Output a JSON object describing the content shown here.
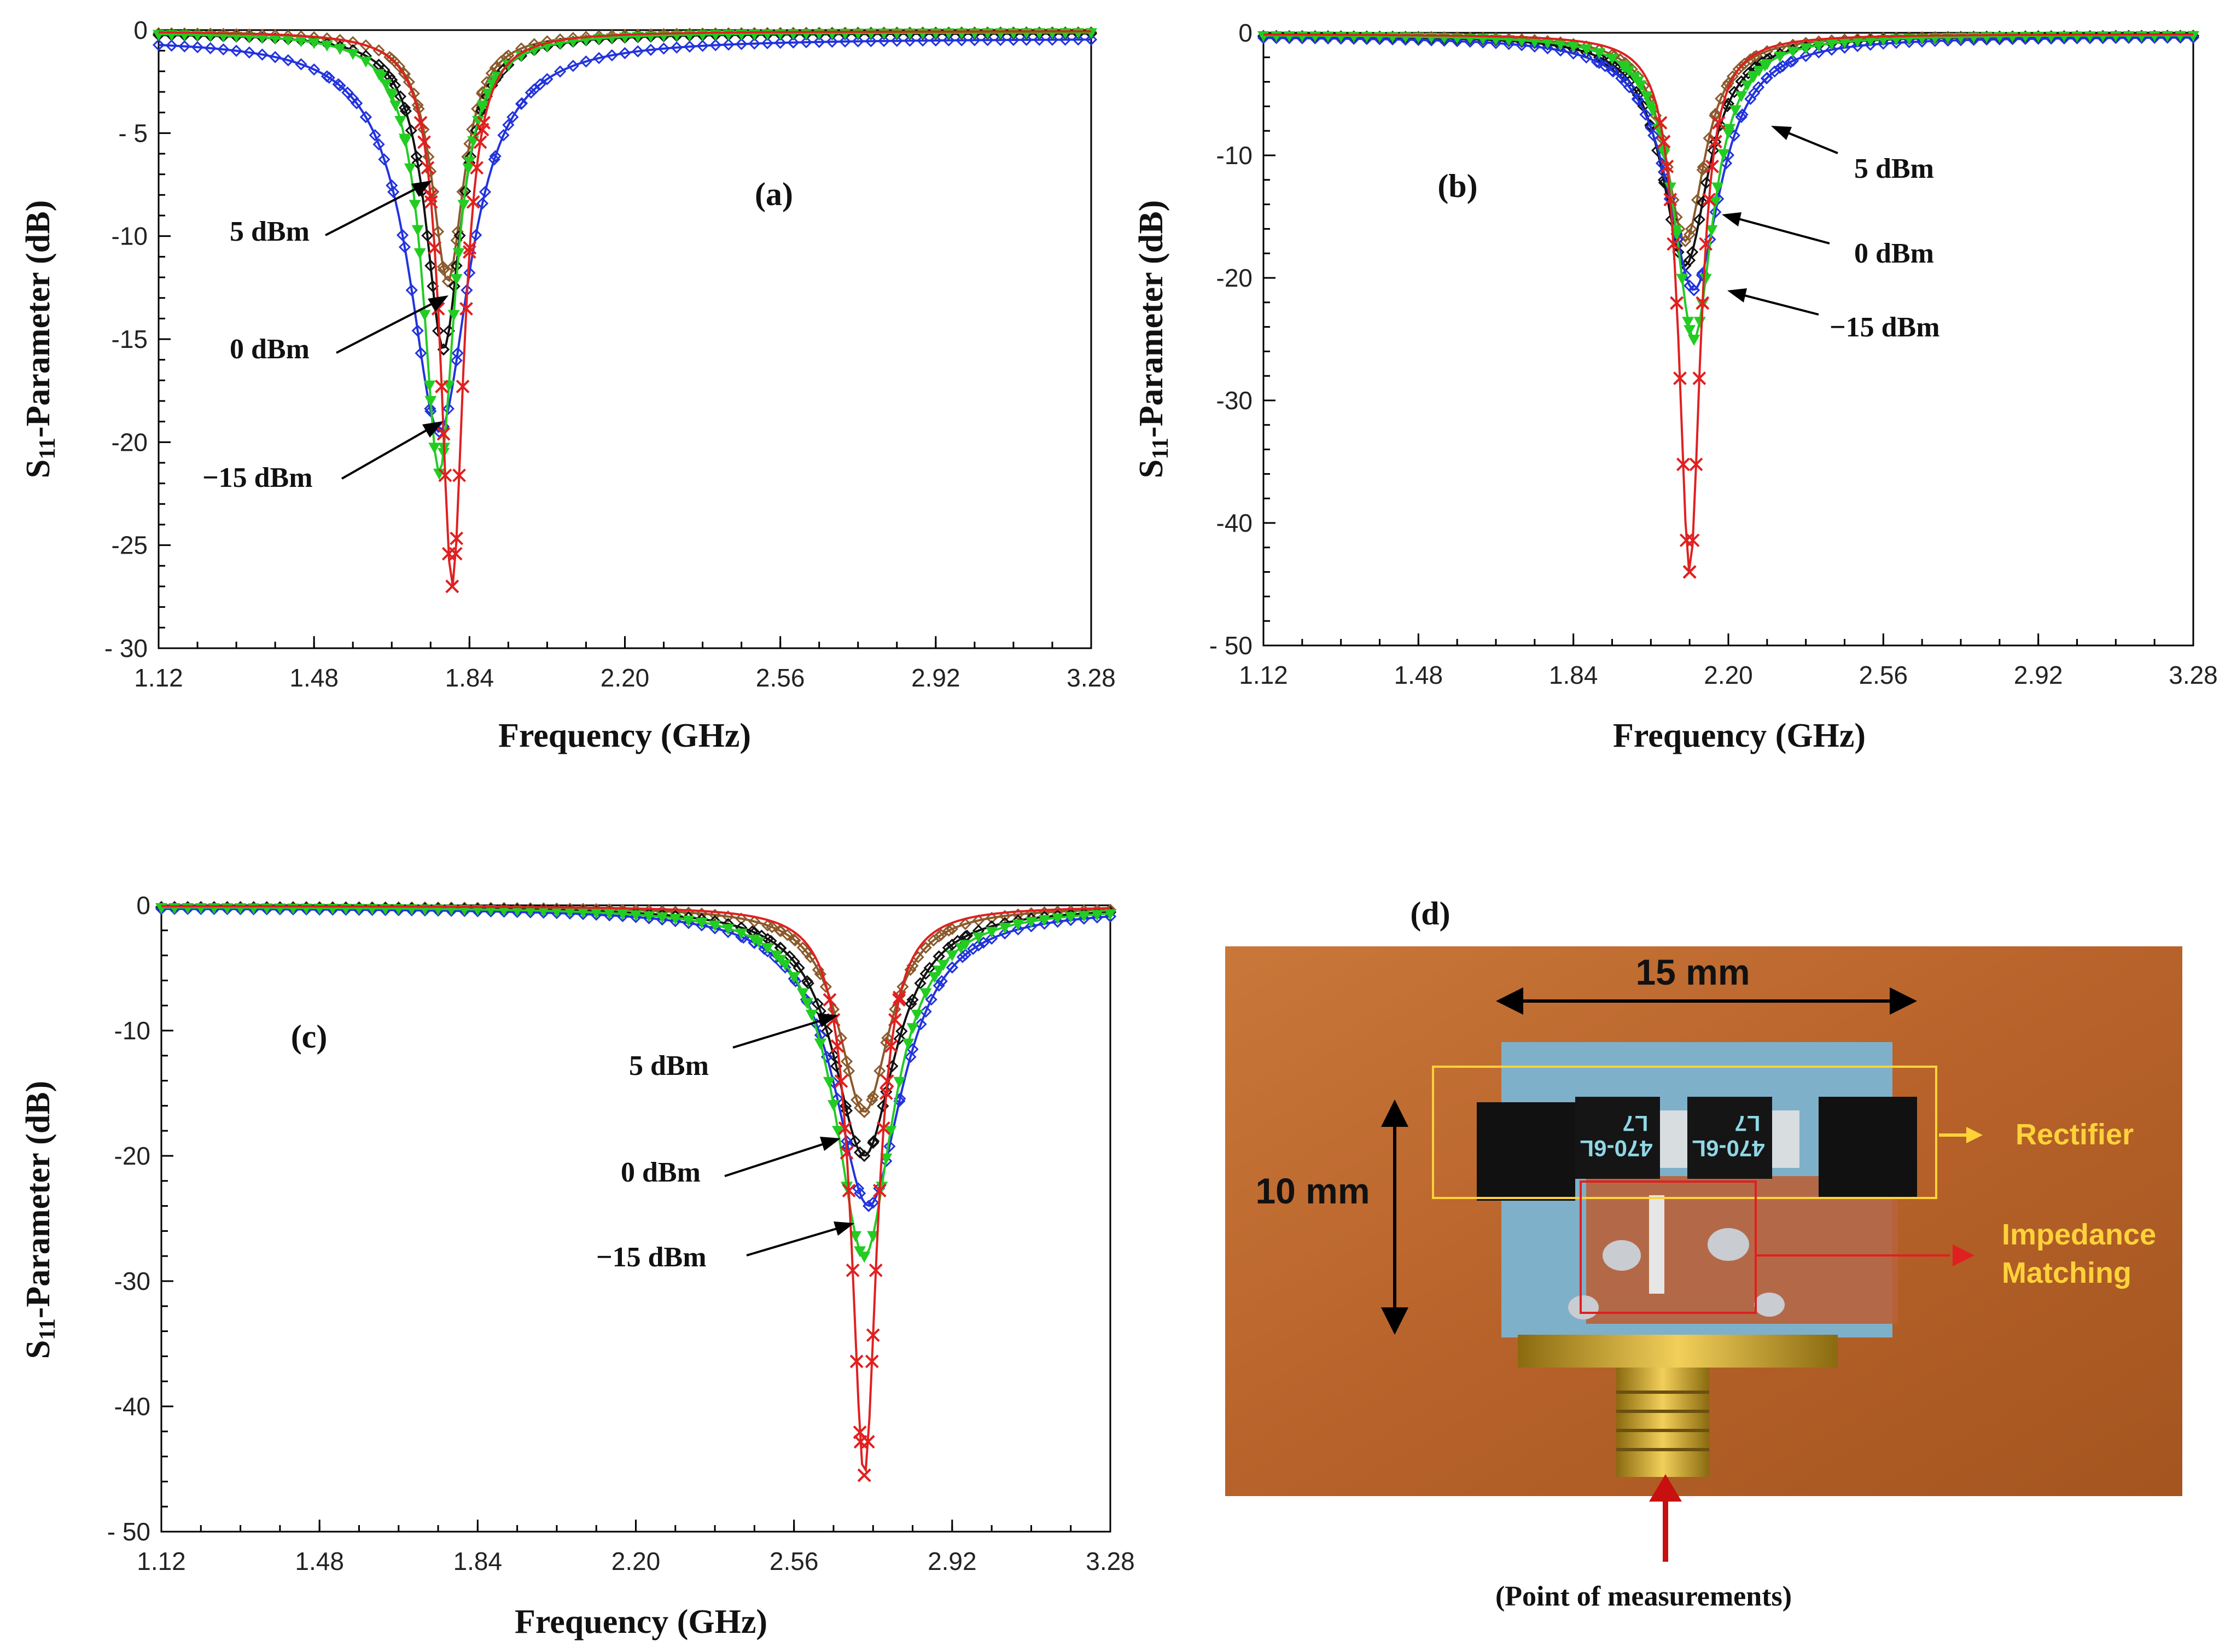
{
  "chart_data": [
    {
      "id": "a",
      "type": "line",
      "panel_label": "(a)",
      "xlabel": "Frequency (GHz)",
      "ylabel_prefix": "S",
      "ylabel_sub": "11",
      "ylabel_suffix": "-Parameter (dB)",
      "xlim": [
        1.12,
        3.28
      ],
      "ylim": [
        -30,
        0
      ],
      "xticks": [
        "1.12",
        "1.48",
        "1.84",
        "2.20",
        "2.56",
        "2.92",
        "3.28"
      ],
      "yticks": [
        "0",
        "- 5",
        "-10",
        "-15",
        "-20",
        "-25",
        "- 30"
      ],
      "series": [
        {
          "name": "5 dBm",
          "color": "#8b5a2b",
          "marker": "diamond",
          "f0": 1.79,
          "depth": -12.2,
          "width": 0.09,
          "baseline": -0.1
        },
        {
          "name": "0 dBm",
          "color": "#111111",
          "marker": "diamond",
          "f0": 1.78,
          "depth": -15.5,
          "width": 0.1,
          "baseline": -0.15
        },
        {
          "name": "-15 dBm",
          "color": "#2233dd",
          "marker": "diamond",
          "f0": 1.77,
          "depth": -19.5,
          "width": 0.17,
          "baseline": -0.4
        },
        {
          "name": "-15 dBm (green)",
          "color": "#22cc22",
          "marker": "triangle",
          "f0": 1.77,
          "depth": -21.5,
          "width": 0.09,
          "baseline": -0.1
        },
        {
          "name": "red",
          "color": "#e02020",
          "marker": "x",
          "f0": 1.8,
          "depth": -27.0,
          "width": 0.065,
          "baseline": -0.05
        }
      ],
      "annotations": [
        {
          "text": "5 dBm"
        },
        {
          "text": "0 dBm"
        },
        {
          "text": "−15 dBm"
        }
      ]
    },
    {
      "id": "b",
      "type": "line",
      "panel_label": "(b)",
      "xlabel": "Frequency (GHz)",
      "ylabel_prefix": "S",
      "ylabel_sub": "11",
      "ylabel_suffix": "-Parameter (dB)",
      "xlim": [
        1.12,
        3.28
      ],
      "ylim": [
        -50,
        0
      ],
      "xticks": [
        "1.12",
        "1.48",
        "1.84",
        "2.20",
        "2.56",
        "2.92",
        "3.28"
      ],
      "yticks": [
        "0",
        "-10",
        "-20",
        "-30",
        "-40",
        "- 50"
      ],
      "series": [
        {
          "name": "5 dBm",
          "color": "#8b5a2b",
          "marker": "diamond",
          "f0": 2.1,
          "depth": -17.0,
          "width": 0.11,
          "baseline": -0.2
        },
        {
          "name": "0 dBm",
          "color": "#111111",
          "marker": "diamond",
          "f0": 2.1,
          "depth": -19.0,
          "width": 0.13,
          "baseline": -0.2
        },
        {
          "name": "-15 dBm",
          "color": "#2233dd",
          "marker": "diamond",
          "f0": 2.12,
          "depth": -21.0,
          "width": 0.15,
          "baseline": -0.3
        },
        {
          "name": "-15 dBm (green)",
          "color": "#22cc22",
          "marker": "triangle",
          "f0": 2.12,
          "depth": -25.0,
          "width": 0.11,
          "baseline": -0.15
        },
        {
          "name": "red",
          "color": "#e02020",
          "marker": "x",
          "f0": 2.11,
          "depth": -44.0,
          "width": 0.06,
          "baseline": -0.1
        }
      ],
      "annotations": [
        {
          "text": "5 dBm"
        },
        {
          "text": "0 dBm"
        },
        {
          "text": "−15 dBm"
        }
      ]
    },
    {
      "id": "c",
      "type": "line",
      "panel_label": "(c)",
      "xlabel": "Frequency (GHz)",
      "ylabel_prefix": "S",
      "ylabel_sub": "11",
      "ylabel_suffix": "-Parameter (dB)",
      "xlim": [
        1.12,
        3.28
      ],
      "ylim": [
        -50,
        0
      ],
      "xticks": [
        "1.12",
        "1.48",
        "1.84",
        "2.20",
        "2.56",
        "2.92",
        "3.28"
      ],
      "yticks": [
        "0",
        "-10",
        "-20",
        "-30",
        "-40",
        "- 50"
      ],
      "series": [
        {
          "name": "5 dBm",
          "color": "#8b5a2b",
          "marker": "diamond",
          "f0": 2.72,
          "depth": -16.5,
          "width": 0.14,
          "baseline": -0.1
        },
        {
          "name": "0 dBm",
          "color": "#111111",
          "marker": "diamond",
          "f0": 2.72,
          "depth": -20.0,
          "width": 0.17,
          "baseline": -0.1
        },
        {
          "name": "-15 dBm",
          "color": "#2233dd",
          "marker": "diamond",
          "f0": 2.73,
          "depth": -24.0,
          "width": 0.19,
          "baseline": -0.2
        },
        {
          "name": "-15 dBm (green)",
          "color": "#22cc22",
          "marker": "triangle",
          "f0": 2.72,
          "depth": -28.0,
          "width": 0.16,
          "baseline": -0.1
        },
        {
          "name": "red",
          "color": "#e02020",
          "marker": "x",
          "f0": 2.72,
          "depth": -45.5,
          "width": 0.07,
          "baseline": -0.05
        }
      ],
      "annotations": [
        {
          "text": "5 dBm"
        },
        {
          "text": "0 dBm"
        },
        {
          "text": "−15 dBm"
        }
      ]
    }
  ],
  "photo": {
    "panel_label": "(d)",
    "width_label": "15 mm",
    "height_label": "10 mm",
    "rectifier_label": "Rectifier",
    "impedance_label_1": "Impedance",
    "impedance_label_2": "Matching",
    "chip_text": "470-6L",
    "chip_code": "L7",
    "measure_label": "(Point of measurements)"
  }
}
